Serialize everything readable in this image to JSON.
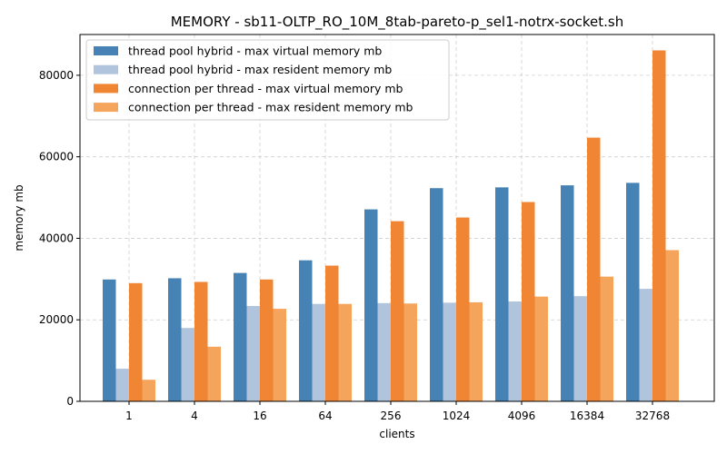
{
  "chart_data": {
    "type": "bar",
    "title": "MEMORY - sb11-OLTP_RO_10M_8tab-pareto-p_sel1-notrx-socket.sh",
    "xlabel": "clients",
    "ylabel": "memory mb",
    "categories": [
      "1",
      "4",
      "16",
      "64",
      "256",
      "1024",
      "4096",
      "16384",
      "32768"
    ],
    "ylim": [
      0,
      90000
    ],
    "yticks": [
      0,
      20000,
      40000,
      60000,
      80000
    ],
    "grid": true,
    "legend_position": "top-left",
    "series": [
      {
        "name": "thread pool hybrid - max virtual memory mb",
        "color": "#4682b4",
        "values": [
          29900,
          30200,
          31500,
          34600,
          47100,
          52300,
          52500,
          53000,
          53600
        ]
      },
      {
        "name": "thread pool hybrid - max resident memory mb",
        "color": "#b0c4de",
        "values": [
          8000,
          18000,
          23400,
          23900,
          24100,
          24200,
          24500,
          25800,
          27600
        ]
      },
      {
        "name": "connection per thread - max virtual memory mb",
        "color": "#f08533",
        "values": [
          29000,
          29300,
          29900,
          33300,
          44200,
          45100,
          48900,
          64700,
          86100
        ]
      },
      {
        "name": "connection per thread - max resident memory mb",
        "color": "#f5a45c",
        "values": [
          5300,
          13400,
          22700,
          23900,
          24000,
          24300,
          25700,
          30600,
          37100
        ]
      }
    ]
  }
}
